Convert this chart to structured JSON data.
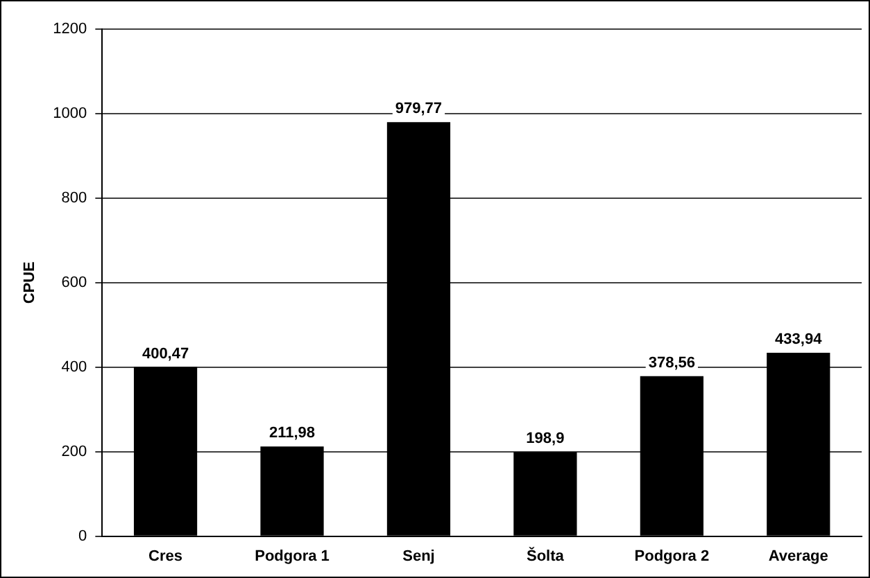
{
  "chart_data": {
    "type": "bar",
    "ylabel": "CPUE",
    "categories": [
      "Cres",
      "Podgora 1",
      "Senj",
      "Šolta",
      "Podgora 2",
      "Average"
    ],
    "values": [
      400.47,
      211.98,
      979.77,
      198.9,
      378.56,
      433.94
    ],
    "value_labels": [
      "400,47",
      "211,98",
      "979,77",
      "198,9",
      "378,56",
      "433,94"
    ],
    "color": "#000000",
    "ylim": [
      0,
      1200
    ],
    "yticks": [
      0,
      200,
      400,
      600,
      800,
      1000,
      1200
    ],
    "grid": "y",
    "legend": false
  }
}
